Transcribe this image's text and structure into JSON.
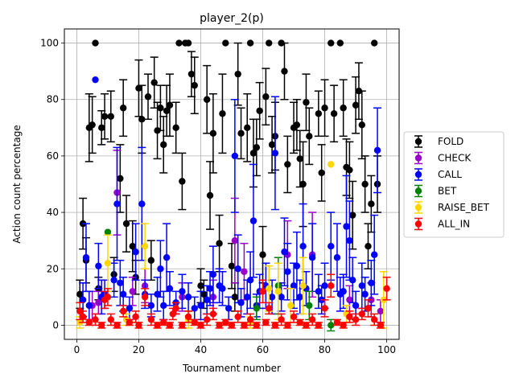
{
  "chart_data": {
    "type": "scatter",
    "title": "player_2(p)",
    "xlabel": "Tournament number",
    "ylabel": "Action count percentage",
    "xlim": [
      -4,
      104
    ],
    "ylim": [
      -5,
      105
    ],
    "xticks": [
      0,
      20,
      40,
      60,
      80,
      100
    ],
    "yticks": [
      0,
      20,
      40,
      60,
      80,
      100
    ],
    "grid": true,
    "legend_position": "center-right",
    "series": [
      {
        "name": "FOLD",
        "color": "#000000",
        "points": [
          [
            1,
            11,
            5
          ],
          [
            2,
            36,
            9
          ],
          [
            3,
            23,
            8
          ],
          [
            4,
            70,
            12
          ],
          [
            5,
            71,
            10
          ],
          [
            6,
            100,
            0
          ],
          [
            7,
            13,
            4
          ],
          [
            8,
            70,
            6
          ],
          [
            9,
            74,
            8
          ],
          [
            11,
            74,
            9
          ],
          [
            12,
            18,
            6
          ],
          [
            14,
            52,
            12
          ],
          [
            15,
            77,
            10
          ],
          [
            16,
            36,
            10
          ],
          [
            18,
            28,
            9
          ],
          [
            19,
            17,
            6
          ],
          [
            20,
            84,
            10
          ],
          [
            21,
            73,
            12
          ],
          [
            23,
            81,
            8
          ],
          [
            24,
            23,
            7
          ],
          [
            25,
            86,
            9
          ],
          [
            26,
            69,
            10
          ],
          [
            27,
            77,
            8
          ],
          [
            28,
            64,
            10
          ],
          [
            29,
            76,
            9
          ],
          [
            30,
            78,
            11
          ],
          [
            32,
            70,
            9
          ],
          [
            33,
            100,
            0
          ],
          [
            34,
            51,
            10
          ],
          [
            35,
            100,
            0
          ],
          [
            36,
            100,
            0
          ],
          [
            37,
            89,
            8
          ],
          [
            38,
            85,
            10
          ],
          [
            40,
            14,
            6
          ],
          [
            41,
            11,
            5
          ],
          [
            42,
            80,
            12
          ],
          [
            43,
            46,
            12
          ],
          [
            44,
            68,
            14
          ],
          [
            46,
            29,
            10
          ],
          [
            47,
            75,
            14
          ],
          [
            48,
            100,
            0
          ],
          [
            50,
            21,
            8
          ],
          [
            51,
            10,
            5
          ],
          [
            52,
            89,
            11
          ],
          [
            53,
            68,
            9
          ],
          [
            55,
            70,
            12
          ],
          [
            56,
            100,
            0
          ],
          [
            57,
            61,
            12
          ],
          [
            58,
            63,
            10
          ],
          [
            59,
            76,
            10
          ],
          [
            60,
            25,
            10
          ],
          [
            61,
            81,
            10
          ],
          [
            62,
            100,
            0
          ],
          [
            63,
            64,
            10
          ],
          [
            64,
            67,
            12
          ],
          [
            66,
            100,
            0
          ],
          [
            67,
            90,
            10
          ],
          [
            68,
            57,
            10
          ],
          [
            70,
            70,
            9
          ],
          [
            71,
            71,
            9
          ],
          [
            72,
            59,
            10
          ],
          [
            73,
            50,
            15
          ],
          [
            74,
            79,
            10
          ],
          [
            75,
            67,
            10
          ],
          [
            78,
            75,
            8
          ],
          [
            79,
            54,
            10
          ],
          [
            80,
            77,
            10
          ],
          [
            82,
            100,
            0
          ],
          [
            83,
            75,
            10
          ],
          [
            85,
            100,
            0
          ],
          [
            86,
            77,
            10
          ],
          [
            87,
            56,
            10
          ],
          [
            88,
            55,
            10
          ],
          [
            89,
            39,
            12
          ],
          [
            90,
            78,
            10
          ],
          [
            91,
            83,
            10
          ],
          [
            92,
            71,
            12
          ],
          [
            93,
            50,
            10
          ],
          [
            94,
            28,
            8
          ],
          [
            95,
            43,
            10
          ],
          [
            96,
            100,
            0
          ],
          [
            97,
            50,
            10
          ]
        ]
      },
      {
        "name": "CHECK",
        "color": "#9900cc",
        "points": [
          [
            5,
            7,
            5
          ],
          [
            7,
            8,
            4
          ],
          [
            13,
            47,
            15
          ],
          [
            18,
            12,
            5
          ],
          [
            22,
            14,
            6
          ],
          [
            34,
            10,
            5
          ],
          [
            44,
            10,
            6
          ],
          [
            51,
            30,
            15
          ],
          [
            54,
            19,
            10
          ],
          [
            68,
            25,
            12
          ],
          [
            76,
            25,
            15
          ],
          [
            88,
            9,
            5
          ],
          [
            95,
            9,
            6
          ],
          [
            98,
            5,
            4
          ]
        ]
      },
      {
        "name": "CALL",
        "color": "#0000ff",
        "points": [
          [
            2,
            9,
            6
          ],
          [
            3,
            24,
            12
          ],
          [
            4,
            7,
            5
          ],
          [
            6,
            87,
            0
          ],
          [
            7,
            21,
            8
          ],
          [
            8,
            10,
            6
          ],
          [
            9,
            11,
            5
          ],
          [
            12,
            16,
            6
          ],
          [
            13,
            43,
            20
          ],
          [
            14,
            15,
            8
          ],
          [
            15,
            11,
            6
          ],
          [
            17,
            6,
            4
          ],
          [
            19,
            26,
            10
          ],
          [
            21,
            43,
            20
          ],
          [
            22,
            11,
            5
          ],
          [
            24,
            7,
            4
          ],
          [
            26,
            11,
            6
          ],
          [
            27,
            20,
            10
          ],
          [
            28,
            7,
            5
          ],
          [
            29,
            24,
            12
          ],
          [
            30,
            13,
            6
          ],
          [
            32,
            8,
            4
          ],
          [
            34,
            12,
            6
          ],
          [
            36,
            10,
            5
          ],
          [
            38,
            6,
            4
          ],
          [
            40,
            7,
            5
          ],
          [
            42,
            9,
            5
          ],
          [
            43,
            13,
            6
          ],
          [
            44,
            18,
            10
          ],
          [
            46,
            14,
            6
          ],
          [
            47,
            13,
            6
          ],
          [
            49,
            6,
            4
          ],
          [
            51,
            60,
            20
          ],
          [
            52,
            20,
            12
          ],
          [
            53,
            8,
            5
          ],
          [
            55,
            10,
            6
          ],
          [
            56,
            16,
            10
          ],
          [
            57,
            37,
            20
          ],
          [
            58,
            7,
            4
          ],
          [
            59,
            12,
            6
          ],
          [
            61,
            14,
            8
          ],
          [
            63,
            10,
            6
          ],
          [
            64,
            61,
            20
          ],
          [
            66,
            10,
            5
          ],
          [
            67,
            26,
            12
          ],
          [
            68,
            19,
            10
          ],
          [
            70,
            14,
            8
          ],
          [
            71,
            21,
            12
          ],
          [
            72,
            10,
            6
          ],
          [
            73,
            28,
            15
          ],
          [
            74,
            13,
            6
          ],
          [
            76,
            24,
            12
          ],
          [
            78,
            12,
            6
          ],
          [
            79,
            9,
            5
          ],
          [
            80,
            14,
            8
          ],
          [
            82,
            28,
            12
          ],
          [
            84,
            24,
            12
          ],
          [
            85,
            11,
            6
          ],
          [
            86,
            12,
            6
          ],
          [
            87,
            35,
            18
          ],
          [
            88,
            30,
            14
          ],
          [
            89,
            16,
            8
          ],
          [
            90,
            7,
            5
          ],
          [
            92,
            14,
            8
          ],
          [
            93,
            11,
            6
          ],
          [
            95,
            15,
            8
          ],
          [
            96,
            25,
            14
          ],
          [
            97,
            62,
            15
          ]
        ]
      },
      {
        "name": "BET",
        "color": "#008000",
        "points": [
          [
            10,
            33,
            0
          ],
          [
            58,
            6,
            4
          ],
          [
            65,
            14,
            10
          ],
          [
            75,
            7,
            5
          ],
          [
            82,
            0,
            2
          ]
        ]
      },
      {
        "name": "RAISE_BET",
        "color": "#ffd700",
        "points": [
          [
            1,
            1,
            2
          ],
          [
            10,
            22,
            10
          ],
          [
            16,
            2,
            2
          ],
          [
            22,
            28,
            8
          ],
          [
            36,
            2,
            3
          ],
          [
            56,
            1,
            2
          ],
          [
            62,
            13,
            8
          ],
          [
            65,
            12,
            10
          ],
          [
            69,
            7,
            6
          ],
          [
            73,
            14,
            10
          ],
          [
            82,
            57,
            0
          ],
          [
            87,
            4,
            3
          ],
          [
            99,
            9,
            10
          ]
        ]
      },
      {
        "name": "ALL_IN",
        "color": "#ff0000",
        "points": [
          [
            1,
            5,
            3
          ],
          [
            2,
            3,
            2
          ],
          [
            4,
            1,
            1
          ],
          [
            6,
            2,
            2
          ],
          [
            8,
            0,
            1
          ],
          [
            9,
            9,
            3
          ],
          [
            10,
            10,
            3
          ],
          [
            11,
            2,
            2
          ],
          [
            13,
            0,
            1
          ],
          [
            15,
            5,
            2
          ],
          [
            17,
            1,
            1
          ],
          [
            19,
            3,
            2
          ],
          [
            20,
            0,
            1
          ],
          [
            22,
            10,
            3
          ],
          [
            24,
            2,
            2
          ],
          [
            26,
            0,
            1
          ],
          [
            28,
            1,
            1
          ],
          [
            30,
            0,
            1
          ],
          [
            31,
            4,
            2
          ],
          [
            32,
            6,
            2
          ],
          [
            34,
            0,
            1
          ],
          [
            36,
            3,
            2
          ],
          [
            38,
            1,
            1
          ],
          [
            40,
            0,
            1
          ],
          [
            42,
            2,
            2
          ],
          [
            44,
            4,
            2
          ],
          [
            46,
            0,
            1
          ],
          [
            48,
            1,
            1
          ],
          [
            50,
            0,
            1
          ],
          [
            52,
            3,
            2
          ],
          [
            54,
            0,
            1
          ],
          [
            56,
            2,
            2
          ],
          [
            58,
            0,
            1
          ],
          [
            60,
            12,
            4
          ],
          [
            61,
            1,
            1
          ],
          [
            62,
            6,
            2
          ],
          [
            64,
            0,
            1
          ],
          [
            66,
            2,
            2
          ],
          [
            68,
            0,
            1
          ],
          [
            70,
            3,
            2
          ],
          [
            72,
            1,
            1
          ],
          [
            74,
            0,
            1
          ],
          [
            76,
            2,
            2
          ],
          [
            78,
            0,
            1
          ],
          [
            80,
            6,
            3
          ],
          [
            82,
            14,
            4
          ],
          [
            84,
            1,
            1
          ],
          [
            86,
            0,
            1
          ],
          [
            88,
            3,
            2
          ],
          [
            90,
            2,
            2
          ],
          [
            92,
            4,
            2
          ],
          [
            94,
            6,
            3
          ],
          [
            96,
            2,
            2
          ],
          [
            98,
            0,
            1
          ],
          [
            100,
            13,
            4
          ]
        ]
      }
    ]
  }
}
